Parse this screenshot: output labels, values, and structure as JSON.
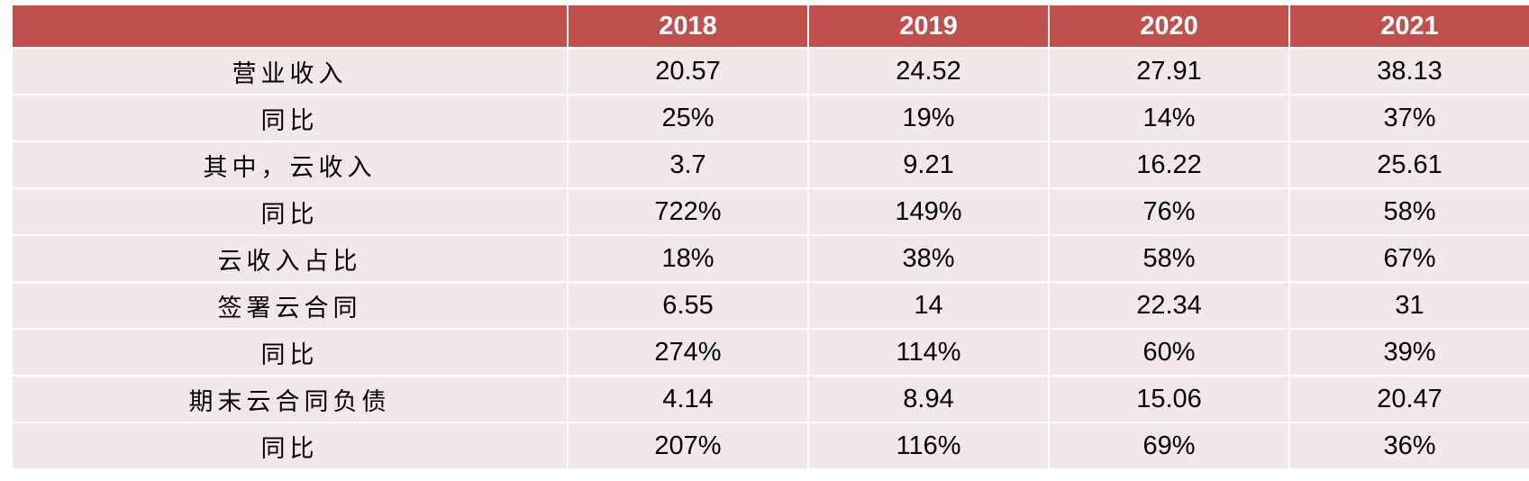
{
  "table": {
    "headers": [
      "",
      "2018",
      "2019",
      "2020",
      "2021"
    ],
    "rows": [
      {
        "label": "营业收入",
        "values": [
          "20.57",
          "24.52",
          "27.91",
          "38.13"
        ]
      },
      {
        "label": "同比",
        "values": [
          "25%",
          "19%",
          "14%",
          "37%"
        ]
      },
      {
        "label": "其中，云收入",
        "values": [
          "3.7",
          "9.21",
          "16.22",
          "25.61"
        ]
      },
      {
        "label": "同比",
        "values": [
          "722%",
          "149%",
          "76%",
          "58%"
        ]
      },
      {
        "label": "云收入占比",
        "values": [
          "18%",
          "38%",
          "58%",
          "67%"
        ]
      },
      {
        "label": "签署云合同",
        "values": [
          "6.55",
          "14",
          "22.34",
          "31"
        ]
      },
      {
        "label": "同比",
        "values": [
          "274%",
          "114%",
          "60%",
          "39%"
        ]
      },
      {
        "label": "期末云合同负债",
        "values": [
          "4.14",
          "8.94",
          "15.06",
          "20.47"
        ]
      },
      {
        "label": "同比",
        "values": [
          "207%",
          "116%",
          "69%",
          "36%"
        ]
      }
    ]
  },
  "colors": {
    "header_bg": "#c0504d",
    "header_text": "#ffffff",
    "row_bg": "#f2e8e8",
    "cell_text": "#000000"
  }
}
